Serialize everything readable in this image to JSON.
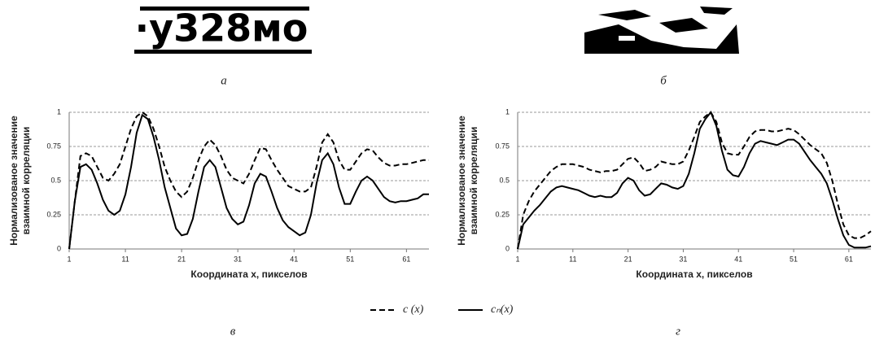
{
  "figures": [
    {
      "label": "а",
      "text": "·у328мо"
    },
    {
      "label": "б"
    }
  ],
  "chart_data": [
    {
      "type": "line",
      "panel_label": "в",
      "xlabel": "Координата x, пикселов",
      "ylabel": [
        "Нормализованое значение",
        "взаимной корреляции"
      ],
      "xlim": [
        1,
        65
      ],
      "xticks": [
        1,
        11,
        21,
        31,
        41,
        51,
        61
      ],
      "ylim": [
        0,
        1
      ],
      "yticks": [
        0,
        0.25,
        0.5,
        0.75,
        1
      ],
      "grid": true,
      "x": [
        1,
        2,
        3,
        4,
        5,
        6,
        7,
        8,
        9,
        10,
        11,
        12,
        13,
        14,
        15,
        16,
        17,
        18,
        19,
        20,
        21,
        22,
        23,
        24,
        25,
        26,
        27,
        28,
        29,
        30,
        31,
        32,
        33,
        34,
        35,
        36,
        37,
        38,
        39,
        40,
        41,
        42,
        43,
        44,
        45,
        46,
        47,
        48,
        49,
        50,
        51,
        52,
        53,
        54,
        55,
        56,
        57,
        58,
        59,
        60,
        61,
        62,
        63,
        64,
        65
      ],
      "series": [
        {
          "name": "c (x)",
          "color": "#000000",
          "dashed": true,
          "values": [
            0,
            0.35,
            0.68,
            0.7,
            0.68,
            0.6,
            0.52,
            0.5,
            0.55,
            0.62,
            0.75,
            0.88,
            0.97,
            1,
            0.97,
            0.88,
            0.75,
            0.6,
            0.5,
            0.42,
            0.38,
            0.42,
            0.52,
            0.65,
            0.75,
            0.8,
            0.76,
            0.68,
            0.58,
            0.52,
            0.5,
            0.48,
            0.55,
            0.65,
            0.74,
            0.73,
            0.65,
            0.58,
            0.52,
            0.46,
            0.44,
            0.42,
            0.42,
            0.45,
            0.6,
            0.78,
            0.84,
            0.78,
            0.65,
            0.58,
            0.58,
            0.64,
            0.7,
            0.73,
            0.72,
            0.67,
            0.63,
            0.61,
            0.61,
            0.62,
            0.62,
            0.63,
            0.64,
            0.65,
            0.65
          ]
        },
        {
          "name": "cₙ(x)",
          "color": "#000000",
          "dashed": false,
          "values": [
            0,
            0.35,
            0.6,
            0.62,
            0.58,
            0.48,
            0.36,
            0.28,
            0.25,
            0.28,
            0.4,
            0.6,
            0.85,
            0.98,
            0.95,
            0.82,
            0.65,
            0.45,
            0.3,
            0.15,
            0.1,
            0.11,
            0.22,
            0.42,
            0.6,
            0.65,
            0.6,
            0.45,
            0.3,
            0.22,
            0.18,
            0.2,
            0.32,
            0.48,
            0.55,
            0.53,
            0.42,
            0.3,
            0.21,
            0.16,
            0.13,
            0.1,
            0.12,
            0.25,
            0.48,
            0.65,
            0.7,
            0.62,
            0.45,
            0.33,
            0.33,
            0.42,
            0.5,
            0.53,
            0.5,
            0.44,
            0.38,
            0.35,
            0.34,
            0.35,
            0.35,
            0.36,
            0.37,
            0.4,
            0.4
          ]
        }
      ]
    },
    {
      "type": "line",
      "panel_label": "г",
      "xlabel": "Координата x, пикселов",
      "ylabel": [
        "Нормализованое значение",
        "взаимной корреляции"
      ],
      "xlim": [
        1,
        65
      ],
      "xticks": [
        1,
        11,
        21,
        31,
        41,
        51,
        61
      ],
      "ylim": [
        0,
        1
      ],
      "yticks": [
        0,
        0.25,
        0.5,
        0.75,
        1
      ],
      "grid": true,
      "x": [
        1,
        2,
        3,
        4,
        5,
        6,
        7,
        8,
        9,
        10,
        11,
        12,
        13,
        14,
        15,
        16,
        17,
        18,
        19,
        20,
        21,
        22,
        23,
        24,
        25,
        26,
        27,
        28,
        29,
        30,
        31,
        32,
        33,
        34,
        35,
        36,
        37,
        38,
        39,
        40,
        41,
        42,
        43,
        44,
        45,
        46,
        47,
        48,
        49,
        50,
        51,
        52,
        53,
        54,
        55,
        56,
        57,
        58,
        59,
        60,
        61,
        62,
        63,
        64,
        65
      ],
      "series": [
        {
          "name": "c (x)",
          "color": "#000000",
          "dashed": true,
          "values": [
            0,
            0.25,
            0.35,
            0.42,
            0.47,
            0.52,
            0.57,
            0.6,
            0.62,
            0.62,
            0.62,
            0.61,
            0.6,
            0.58,
            0.57,
            0.56,
            0.57,
            0.57,
            0.58,
            0.62,
            0.66,
            0.67,
            0.63,
            0.57,
            0.58,
            0.6,
            0.64,
            0.63,
            0.62,
            0.62,
            0.64,
            0.72,
            0.82,
            0.93,
            0.97,
            1,
            0.93,
            0.78,
            0.7,
            0.69,
            0.69,
            0.75,
            0.82,
            0.86,
            0.87,
            0.87,
            0.86,
            0.86,
            0.87,
            0.88,
            0.87,
            0.84,
            0.8,
            0.76,
            0.73,
            0.7,
            0.63,
            0.5,
            0.33,
            0.18,
            0.1,
            0.08,
            0.08,
            0.1,
            0.13
          ]
        },
        {
          "name": "cₙ(x)",
          "color": "#000000",
          "dashed": false,
          "values": [
            0,
            0.18,
            0.23,
            0.28,
            0.32,
            0.37,
            0.42,
            0.45,
            0.46,
            0.45,
            0.44,
            0.43,
            0.41,
            0.39,
            0.38,
            0.39,
            0.38,
            0.38,
            0.41,
            0.48,
            0.52,
            0.5,
            0.43,
            0.39,
            0.4,
            0.44,
            0.48,
            0.47,
            0.45,
            0.44,
            0.46,
            0.55,
            0.7,
            0.88,
            0.95,
            1,
            0.9,
            0.72,
            0.58,
            0.54,
            0.53,
            0.6,
            0.7,
            0.77,
            0.79,
            0.78,
            0.77,
            0.76,
            0.78,
            0.8,
            0.8,
            0.77,
            0.71,
            0.65,
            0.6,
            0.55,
            0.48,
            0.36,
            0.22,
            0.1,
            0.03,
            0.01,
            0.01,
            0.01,
            0.02
          ]
        }
      ]
    }
  ]
}
